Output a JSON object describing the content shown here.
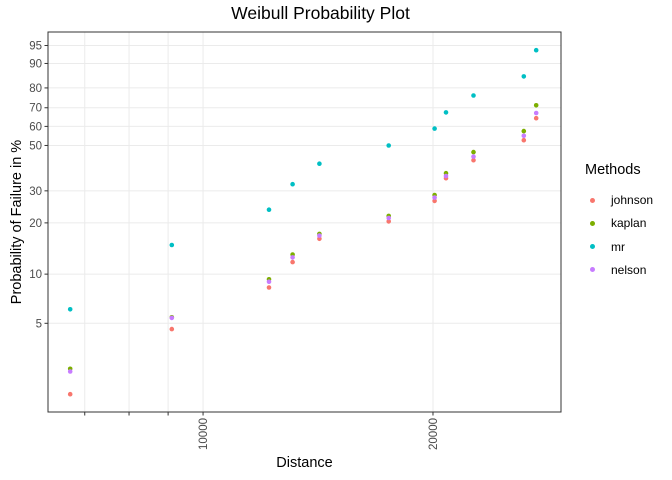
{
  "chart_data": {
    "type": "scatter",
    "title": "Weibull Probability Plot",
    "xlabel": "Distance",
    "ylabel": "Probability of Failure in %",
    "x_scale": "log10",
    "y_scale": "weibull-probability",
    "x_domain": [
      6266,
      29420
    ],
    "y_domain_pct": [
      1.39,
      97.4
    ],
    "grid": true,
    "x_ticks": [
      {
        "value": 7000,
        "label": ""
      },
      {
        "value": 8000,
        "label": ""
      },
      {
        "value": 9000,
        "label": ""
      },
      {
        "value": 10000,
        "label": "10000"
      },
      {
        "value": 20000,
        "label": "20000"
      }
    ],
    "y_ticks": [
      {
        "value": 5,
        "label": "5"
      },
      {
        "value": 10,
        "label": "10"
      },
      {
        "value": 20,
        "label": "20"
      },
      {
        "value": 30,
        "label": "30"
      },
      {
        "value": 50,
        "label": "50"
      },
      {
        "value": 60,
        "label": "60"
      },
      {
        "value": 70,
        "label": "70"
      },
      {
        "value": 80,
        "label": "80"
      },
      {
        "value": 90,
        "label": "90"
      },
      {
        "value": 95,
        "label": "95"
      }
    ],
    "x": [
      6700,
      9100,
      12200,
      13100,
      14200,
      17500,
      20100,
      20800,
      22600,
      26300,
      27300
    ],
    "series": [
      {
        "name": "johnson",
        "color": "#F8766D",
        "values": [
          1.8,
          4.6,
          8.3,
          11.8,
          16.2,
          20.4,
          26.5,
          34.9,
          42.8,
          52.7,
          64.4
        ]
      },
      {
        "name": "kaplan",
        "color": "#7CAE00",
        "values": [
          2.6,
          5.45,
          9.3,
          13.1,
          17.3,
          21.9,
          28.5,
          37.0,
          46.7,
          57.5,
          71.3
        ]
      },
      {
        "name": "mr",
        "color": "#00BFC4",
        "values": [
          6.1,
          14.9,
          23.7,
          32.5,
          41.2,
          50.0,
          58.8,
          67.5,
          76.3,
          85.1,
          93.9
        ]
      },
      {
        "name": "nelson",
        "color": "#C77CFF",
        "values": [
          2.5,
          5.4,
          9.0,
          12.6,
          16.9,
          21.3,
          27.6,
          35.8,
          44.5,
          55.0,
          67.2
        ]
      }
    ],
    "legend": {
      "title": "Methods",
      "position": "right"
    },
    "style": {
      "panel_background": "#FFFFFF",
      "grid_color": "#EBEBEB",
      "panel_border_color": "#333333",
      "tick_color": "#333333",
      "axis_text_color": "#4D4D4D",
      "point_radius": 2.3
    }
  }
}
